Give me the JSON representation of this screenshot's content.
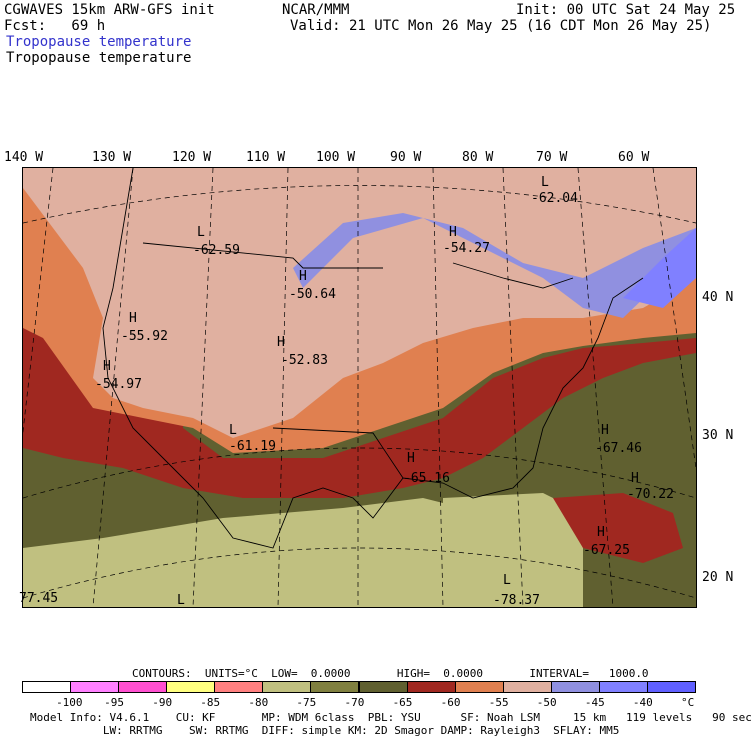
{
  "header": {
    "model": "CGWAVES 15km ARW-GFS init",
    "fcst": "Fcst:   69 h",
    "org": "NCAR/MMM",
    "init": "Init: 00 UTC Sat 24 May 25",
    "valid": "Valid: 21 UTC Mon 26 May 25 (16 CDT Mon 26 May 25)",
    "field1": "Tropopause temperature",
    "field2": "Tropopause temperature"
  },
  "longitudes": [
    "140 W",
    "130 W",
    "120 W",
    "110 W",
    "100 W",
    "90 W",
    "80 W",
    "70 W",
    "60 W"
  ],
  "latitudes": [
    "40 N",
    "30 N",
    "20 N"
  ],
  "labels": [
    {
      "type": "L",
      "value": "-62.04"
    },
    {
      "type": "L",
      "value": "-62.59"
    },
    {
      "type": "H",
      "value": "-54.27"
    },
    {
      "type": "H",
      "value": "-50.64"
    },
    {
      "type": "H",
      "value": "-55.92"
    },
    {
      "type": "H",
      "value": "-52.83"
    },
    {
      "type": "H",
      "value": "-54.97"
    },
    {
      "type": "L",
      "value": "-61.19"
    },
    {
      "type": "H",
      "value": "-67.46"
    },
    {
      "type": "H",
      "value": "-65.16"
    },
    {
      "type": "H",
      "value": "-70.22"
    },
    {
      "type": "H",
      "value": "-67.25"
    },
    {
      "type": "L",
      "value": "-78.37"
    },
    {
      "type": "",
      "value": "77.45"
    },
    {
      "type": "L",
      "value": ""
    }
  ],
  "contours": {
    "line": "CONTOURS:  UNITS=°C  LOW=  0.0000       HIGH=  0.0000       INTERVAL=   1000.0"
  },
  "colorbar": {
    "colors": [
      "#ffffff",
      "#ff80ff",
      "#ff50d0",
      "#ffff80",
      "#ff8080",
      "#c0c080",
      "#808040",
      "#606030",
      "#a02820",
      "#e08050",
      "#e0b0a0",
      "#9090e0",
      "#8080ff",
      "#6060ff"
    ],
    "ticks": [
      "-100",
      "-95",
      "-90",
      "-85",
      "-80",
      "-75",
      "-70",
      "-65",
      "-60",
      "-55",
      "-50",
      "-45",
      "-40",
      "°C"
    ]
  },
  "model_info": {
    "line1": "Model Info: V4.6.1    CU: KF       MP: WDM 6class  PBL: YSU      SF: Noah LSM     15 km   119 levels   90 sec",
    "line2": "           LW: RRTMG    SW: RRTMG  DIFF: simple KM: 2D Smagor DAMP: Rayleigh3  SFLAY: MM5"
  }
}
